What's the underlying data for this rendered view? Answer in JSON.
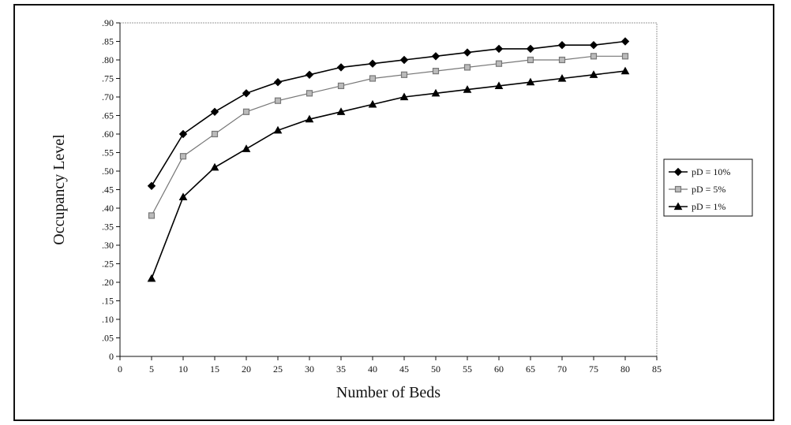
{
  "chart_data": {
    "type": "line",
    "title": "",
    "xlabel": "Number of Beds",
    "ylabel": "Occupancy Level",
    "xlim": [
      0,
      85
    ],
    "ylim": [
      0,
      0.9
    ],
    "x_ticks": [
      0,
      5,
      10,
      15,
      20,
      25,
      30,
      35,
      40,
      45,
      50,
      55,
      60,
      65,
      70,
      75,
      80,
      85
    ],
    "x_tick_labels": [
      "0",
      "5",
      "10",
      "15",
      "20",
      "25",
      "30",
      "35",
      "40",
      "45",
      "50",
      "55",
      "60",
      "65",
      "70",
      "75",
      "80",
      "85"
    ],
    "y_ticks": [
      0,
      0.05,
      0.1,
      0.15,
      0.2,
      0.25,
      0.3,
      0.35,
      0.4,
      0.45,
      0.5,
      0.55,
      0.6,
      0.65,
      0.7,
      0.75,
      0.8,
      0.85,
      0.9
    ],
    "y_tick_labels": [
      "0",
      ".05",
      ".10",
      ".15",
      ".20",
      ".25",
      ".30",
      ".35",
      ".40",
      ".45",
      ".50",
      ".55",
      ".60",
      ".65",
      ".70",
      ".75",
      ".80",
      ".85",
      ".90"
    ],
    "grid": false,
    "legend_position": "right",
    "x": [
      5,
      10,
      15,
      20,
      25,
      30,
      35,
      40,
      45,
      50,
      55,
      60,
      65,
      70,
      75,
      80
    ],
    "series": [
      {
        "name": "pD = 10%",
        "marker": "diamond",
        "color": "#000000",
        "values": [
          0.46,
          0.6,
          0.66,
          0.71,
          0.74,
          0.76,
          0.78,
          0.79,
          0.8,
          0.81,
          0.82,
          0.83,
          0.83,
          0.84,
          0.84,
          0.85
        ]
      },
      {
        "name": "pD = 5%",
        "marker": "square",
        "color": "#777777",
        "values": [
          0.38,
          0.54,
          0.6,
          0.66,
          0.69,
          0.71,
          0.73,
          0.75,
          0.76,
          0.77,
          0.78,
          0.79,
          0.8,
          0.8,
          0.81,
          0.81
        ]
      },
      {
        "name": "pD = 1%",
        "marker": "triangle",
        "color": "#000000",
        "values": [
          0.21,
          0.43,
          0.51,
          0.56,
          0.61,
          0.64,
          0.66,
          0.68,
          0.7,
          0.71,
          0.72,
          0.73,
          0.74,
          0.75,
          0.76,
          0.77
        ]
      }
    ]
  }
}
